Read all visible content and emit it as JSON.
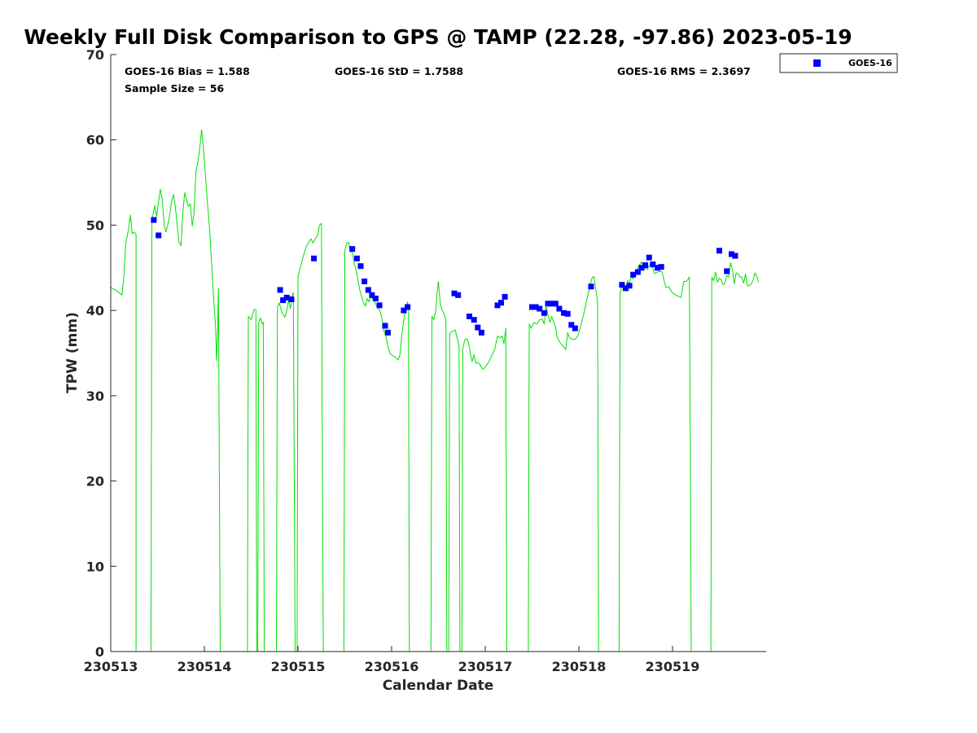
{
  "chart_data": {
    "type": "scatter",
    "title": "Weekly Full Disk Comparison to GPS @ TAMP (22.28, -97.86) 2023-05-19",
    "xlabel": "Calendar Date",
    "ylabel": "TPW (mm)",
    "xlim": [
      0,
      7
    ],
    "ylim": [
      0,
      70
    ],
    "x_tick_values": [
      0,
      1,
      2,
      3,
      4,
      5,
      6
    ],
    "x_tick_labels": [
      "230513",
      "230514",
      "230515",
      "230516",
      "230517",
      "230518",
      "230519"
    ],
    "y_ticks": [
      0,
      10,
      20,
      30,
      40,
      50,
      60,
      70
    ],
    "stats": {
      "bias": "GOES-16 Bias = 1.588",
      "std": "GOES-16 StD = 1.7588",
      "rms": "GOES-16 RMS = 2.3697",
      "sample_size": "Sample Size = 56"
    },
    "legend": {
      "position": "outside-top-right",
      "entries": [
        "GOES-16"
      ]
    },
    "colors": {
      "goes16": "#0000ff",
      "gps": "#00e000"
    },
    "series": [
      {
        "name": "GOES-16",
        "style": "markers",
        "points": [
          [
            0.46,
            50.6
          ],
          [
            0.51,
            48.8
          ],
          [
            1.81,
            42.4
          ],
          [
            1.84,
            41.2
          ],
          [
            1.88,
            41.5
          ],
          [
            1.93,
            41.3
          ],
          [
            2.17,
            46.1
          ],
          [
            2.58,
            47.2
          ],
          [
            2.63,
            46.1
          ],
          [
            2.67,
            45.2
          ],
          [
            2.71,
            43.4
          ],
          [
            2.75,
            42.4
          ],
          [
            2.79,
            41.8
          ],
          [
            2.83,
            41.4
          ],
          [
            2.87,
            40.6
          ],
          [
            2.93,
            38.2
          ],
          [
            2.96,
            37.4
          ],
          [
            3.13,
            40.0
          ],
          [
            3.17,
            40.4
          ],
          [
            3.67,
            42.0
          ],
          [
            3.71,
            41.8
          ],
          [
            3.83,
            39.3
          ],
          [
            3.88,
            38.9
          ],
          [
            3.92,
            38.0
          ],
          [
            3.96,
            37.4
          ],
          [
            4.13,
            40.6
          ],
          [
            4.17,
            40.9
          ],
          [
            4.21,
            41.6
          ],
          [
            4.5,
            40.4
          ],
          [
            4.54,
            40.4
          ],
          [
            4.58,
            40.2
          ],
          [
            4.63,
            39.7
          ],
          [
            4.67,
            40.8
          ],
          [
            4.71,
            40.8
          ],
          [
            4.75,
            40.8
          ],
          [
            4.79,
            40.2
          ],
          [
            4.84,
            39.7
          ],
          [
            4.88,
            39.6
          ],
          [
            4.92,
            38.3
          ],
          [
            4.96,
            37.9
          ],
          [
            5.13,
            42.8
          ],
          [
            5.46,
            43.0
          ],
          [
            5.5,
            42.6
          ],
          [
            5.54,
            42.9
          ],
          [
            5.58,
            44.2
          ],
          [
            5.63,
            44.5
          ],
          [
            5.67,
            45.0
          ],
          [
            5.71,
            45.3
          ],
          [
            5.75,
            46.2
          ],
          [
            5.79,
            45.4
          ],
          [
            5.84,
            45.0
          ],
          [
            5.88,
            45.1
          ],
          [
            6.5,
            47.0
          ],
          [
            6.58,
            44.6
          ],
          [
            6.63,
            46.6
          ],
          [
            6.67,
            46.4
          ]
        ]
      },
      {
        "style": "line",
        "gaps": "null values break the line",
        "points": [
          [
            0.0,
            42.7
          ],
          [
            0.05,
            42.4
          ],
          [
            0.1,
            42.0
          ],
          [
            0.12,
            41.8
          ],
          [
            0.14,
            44.0
          ],
          [
            0.16,
            47.8
          ],
          [
            0.19,
            49.5
          ],
          [
            0.21,
            51.2
          ],
          [
            0.23,
            49.0
          ],
          [
            0.25,
            49.2
          ],
          [
            0.27,
            48.9
          ],
          [
            0.27,
            0.0
          ],
          null,
          [
            0.43,
            0.0
          ],
          [
            0.44,
            50.5
          ],
          [
            0.47,
            52.3
          ],
          [
            0.49,
            51.0
          ],
          [
            0.53,
            54.2
          ],
          [
            0.55,
            53.0
          ],
          [
            0.57,
            50.0
          ],
          [
            0.59,
            49.2
          ],
          [
            0.62,
            50.5
          ],
          [
            0.65,
            52.8
          ],
          [
            0.67,
            53.6
          ],
          [
            0.69,
            52.2
          ],
          [
            0.71,
            50.0
          ],
          [
            0.73,
            48.0
          ],
          [
            0.75,
            47.6
          ],
          [
            0.77,
            51.5
          ],
          [
            0.79,
            53.8
          ],
          [
            0.81,
            53.0
          ],
          [
            0.83,
            52.2
          ],
          [
            0.85,
            52.5
          ],
          [
            0.87,
            49.9
          ],
          [
            0.89,
            51.4
          ],
          [
            0.91,
            56.4
          ],
          [
            0.93,
            57.3
          ],
          [
            0.95,
            59.0
          ],
          [
            0.97,
            61.2
          ],
          [
            0.99,
            59.0
          ],
          [
            1.01,
            56.0
          ],
          [
            1.03,
            53.0
          ],
          [
            1.06,
            49.0
          ],
          [
            1.09,
            43.0
          ],
          [
            1.12,
            38.0
          ],
          [
            1.13,
            34.1
          ],
          [
            1.14,
            37.0
          ],
          [
            1.15,
            42.6
          ],
          [
            1.16,
            21.0
          ],
          [
            1.17,
            0.0
          ],
          null,
          [
            1.46,
            0.0
          ],
          [
            1.47,
            39.3
          ],
          [
            1.5,
            38.9
          ],
          [
            1.53,
            40.1
          ],
          [
            1.55,
            40.1
          ],
          [
            1.56,
            0.0
          ],
          null,
          [
            1.57,
            0.0
          ],
          [
            1.58,
            38.5
          ],
          [
            1.6,
            39.1
          ],
          [
            1.62,
            38.4
          ],
          [
            1.63,
            38.6
          ],
          [
            1.64,
            0.0
          ],
          null,
          [
            1.77,
            0.0
          ],
          [
            1.78,
            40.3
          ],
          [
            1.8,
            40.9
          ],
          [
            1.83,
            39.7
          ],
          [
            1.86,
            39.2
          ],
          [
            1.88,
            40.0
          ],
          [
            1.9,
            41.2
          ],
          [
            1.92,
            40.2
          ],
          [
            1.94,
            41.8
          ],
          [
            1.95,
            42.1
          ],
          [
            1.97,
            0.0
          ],
          [
            1.99,
            0.0
          ],
          [
            2.0,
            44.0
          ],
          [
            2.03,
            45.2
          ],
          [
            2.06,
            46.5
          ],
          [
            2.09,
            47.5
          ],
          [
            2.12,
            48.1
          ],
          [
            2.14,
            48.4
          ],
          [
            2.16,
            47.9
          ],
          [
            2.19,
            48.5
          ],
          [
            2.21,
            48.8
          ],
          [
            2.23,
            50.0
          ],
          [
            2.25,
            50.2
          ],
          [
            2.26,
            24.0
          ],
          [
            2.27,
            0.0
          ],
          null,
          [
            2.49,
            0.0
          ],
          [
            2.5,
            47.0
          ],
          [
            2.52,
            47.9
          ],
          [
            2.54,
            48.0
          ],
          [
            2.56,
            46.8
          ],
          [
            2.58,
            47.0
          ],
          [
            2.6,
            45.5
          ],
          [
            2.62,
            44.8
          ],
          [
            2.64,
            43.6
          ],
          [
            2.66,
            42.4
          ],
          [
            2.68,
            41.6
          ],
          [
            2.7,
            40.9
          ],
          [
            2.72,
            40.5
          ],
          [
            2.74,
            41.4
          ],
          [
            2.76,
            41.0
          ],
          [
            2.78,
            41.7
          ],
          [
            2.8,
            41.3
          ],
          [
            2.82,
            41.0
          ],
          [
            2.84,
            40.5
          ],
          [
            2.86,
            40.2
          ],
          [
            2.88,
            39.8
          ],
          [
            2.9,
            38.8
          ],
          [
            2.92,
            37.5
          ],
          [
            2.94,
            36.9
          ],
          [
            2.96,
            35.8
          ],
          [
            2.98,
            35.0
          ],
          [
            3.01,
            34.7
          ],
          [
            3.04,
            34.5
          ],
          [
            3.07,
            34.2
          ],
          [
            3.09,
            34.8
          ],
          [
            3.11,
            37.2
          ],
          [
            3.14,
            39.6
          ],
          [
            3.17,
            41.0
          ],
          [
            3.18,
            40.2
          ],
          [
            3.19,
            0.0
          ],
          null,
          [
            3.42,
            0.0
          ],
          [
            3.43,
            39.3
          ],
          [
            3.45,
            38.9
          ],
          [
            3.47,
            39.9
          ],
          [
            3.49,
            42.5
          ],
          [
            3.5,
            43.4
          ],
          [
            3.52,
            40.8
          ],
          [
            3.54,
            40.0
          ],
          [
            3.56,
            39.6
          ],
          [
            3.58,
            38.9
          ],
          [
            3.59,
            0.0
          ],
          null,
          [
            3.61,
            0.0
          ],
          [
            3.62,
            37.3
          ],
          [
            3.64,
            37.5
          ],
          [
            3.66,
            37.6
          ],
          [
            3.68,
            37.7
          ],
          [
            3.7,
            36.8
          ],
          [
            3.72,
            35.8
          ],
          [
            3.73,
            0.0
          ],
          null,
          [
            3.75,
            0.0
          ],
          [
            3.76,
            35.5
          ],
          [
            3.78,
            36.5
          ],
          [
            3.8,
            36.7
          ],
          [
            3.82,
            36.3
          ],
          [
            3.84,
            35.0
          ],
          [
            3.86,
            34.0
          ],
          [
            3.88,
            34.8
          ],
          [
            3.9,
            33.8
          ],
          [
            3.92,
            33.9
          ],
          [
            3.94,
            33.7
          ],
          [
            3.96,
            33.3
          ],
          [
            3.98,
            33.1
          ],
          [
            4.01,
            33.5
          ],
          [
            4.04,
            34.0
          ],
          [
            4.07,
            34.7
          ],
          [
            4.1,
            35.4
          ],
          [
            4.13,
            37.0
          ],
          [
            4.16,
            36.8
          ],
          [
            4.18,
            37.0
          ],
          [
            4.2,
            36.1
          ],
          [
            4.22,
            37.9
          ],
          [
            4.23,
            0.0
          ],
          null,
          [
            4.46,
            0.0
          ],
          [
            4.47,
            38.4
          ],
          [
            4.49,
            37.9
          ],
          [
            4.52,
            38.6
          ],
          [
            4.55,
            38.4
          ],
          [
            4.58,
            38.9
          ],
          [
            4.61,
            39.0
          ],
          [
            4.63,
            38.4
          ],
          [
            4.65,
            40.5
          ],
          [
            4.67,
            39.5
          ],
          [
            4.69,
            38.6
          ],
          [
            4.71,
            39.3
          ],
          [
            4.73,
            38.6
          ],
          [
            4.75,
            38.1
          ],
          [
            4.77,
            36.8
          ],
          [
            4.8,
            36.2
          ],
          [
            4.83,
            35.8
          ],
          [
            4.86,
            35.4
          ],
          [
            4.88,
            37.4
          ],
          [
            4.9,
            36.8
          ],
          [
            4.93,
            36.6
          ],
          [
            4.96,
            36.6
          ],
          [
            4.99,
            37.0
          ],
          [
            5.02,
            38.2
          ],
          [
            5.05,
            39.5
          ],
          [
            5.08,
            41.0
          ],
          [
            5.11,
            42.5
          ],
          [
            5.14,
            43.8
          ],
          [
            5.16,
            44.0
          ],
          [
            5.18,
            42.5
          ],
          [
            5.2,
            41.0
          ],
          [
            5.21,
            0.0
          ],
          null,
          [
            5.43,
            0.0
          ],
          [
            5.44,
            42.0
          ],
          [
            5.46,
            42.9
          ],
          [
            5.48,
            42.4
          ],
          [
            5.5,
            42.7
          ],
          [
            5.52,
            43.5
          ],
          [
            5.54,
            43.2
          ],
          [
            5.56,
            44.0
          ],
          [
            5.58,
            43.7
          ],
          [
            5.61,
            44.6
          ],
          [
            5.64,
            45.2
          ],
          [
            5.67,
            45.7
          ],
          [
            5.7,
            45.0
          ],
          [
            5.73,
            44.8
          ],
          [
            5.76,
            45.4
          ],
          [
            5.79,
            44.9
          ],
          [
            5.81,
            44.3
          ],
          [
            5.84,
            44.5
          ],
          [
            5.87,
            44.6
          ],
          [
            5.89,
            44.5
          ],
          [
            5.91,
            43.5
          ],
          [
            5.93,
            42.7
          ],
          [
            5.96,
            42.8
          ],
          [
            5.99,
            42.2
          ],
          [
            6.02,
            41.9
          ],
          [
            6.05,
            41.7
          ],
          [
            6.09,
            41.5
          ],
          [
            6.12,
            43.4
          ],
          [
            6.15,
            43.4
          ],
          [
            6.18,
            43.9
          ],
          [
            6.19,
            24.0
          ],
          [
            6.2,
            0.0
          ],
          null,
          [
            6.41,
            0.0
          ],
          [
            6.42,
            43.9
          ],
          [
            6.44,
            43.5
          ],
          [
            6.46,
            44.5
          ],
          [
            6.48,
            43.3
          ],
          [
            6.5,
            43.8
          ],
          [
            6.52,
            43.6
          ],
          [
            6.54,
            43.0
          ],
          [
            6.56,
            43.2
          ],
          [
            6.58,
            44.1
          ],
          [
            6.6,
            43.9
          ],
          [
            6.62,
            45.6
          ],
          [
            6.64,
            44.8
          ],
          [
            6.66,
            43.1
          ],
          [
            6.68,
            44.4
          ],
          [
            6.7,
            44.3
          ],
          [
            6.72,
            43.9
          ],
          [
            6.74,
            43.9
          ],
          [
            6.76,
            43.2
          ],
          [
            6.78,
            44.3
          ],
          [
            6.8,
            42.9
          ],
          [
            6.82,
            42.9
          ],
          [
            6.84,
            43.1
          ],
          [
            6.86,
            43.5
          ],
          [
            6.88,
            44.4
          ],
          [
            6.9,
            44.0
          ],
          [
            6.92,
            43.3
          ]
        ]
      }
    ]
  }
}
